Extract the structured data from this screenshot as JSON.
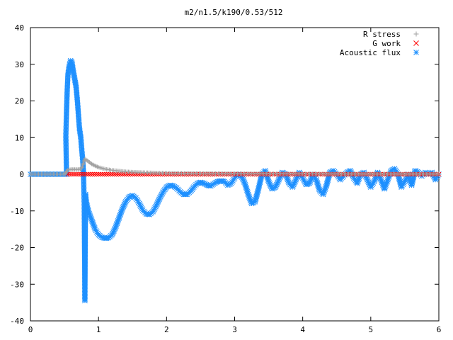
{
  "chart_data": {
    "type": "scatter",
    "title": "m2/n1.5/k190/0.53/512",
    "xlabel": "",
    "ylabel": "",
    "xlim": [
      0,
      6
    ],
    "ylim": [
      -40,
      40
    ],
    "x_ticks": [
      0,
      1,
      2,
      3,
      4,
      5,
      6
    ],
    "y_ticks": [
      -40,
      -30,
      -20,
      -10,
      0,
      10,
      20,
      30,
      40
    ],
    "grid": false,
    "legend_position": "top-right",
    "series": [
      {
        "name": "R stress",
        "marker": "plus",
        "color": "#a0a0a0",
        "points": [
          [
            0,
            0
          ],
          [
            0.5,
            0
          ],
          [
            0.55,
            1.2
          ],
          [
            0.6,
            1.3
          ],
          [
            0.65,
            1.3
          ],
          [
            0.7,
            1.3
          ],
          [
            0.75,
            1.5
          ],
          [
            0.8,
            4.2
          ],
          [
            0.85,
            3.5
          ],
          [
            0.9,
            2.8
          ],
          [
            0.95,
            2.3
          ],
          [
            1.0,
            1.9
          ],
          [
            1.1,
            1.4
          ],
          [
            1.2,
            1.1
          ],
          [
            1.3,
            0.9
          ],
          [
            1.4,
            0.7
          ],
          [
            1.5,
            0.6
          ],
          [
            1.7,
            0.45
          ],
          [
            2.0,
            0.3
          ],
          [
            2.5,
            0.2
          ],
          [
            3.0,
            0.15
          ],
          [
            4.0,
            0.1
          ],
          [
            5.0,
            0.05
          ],
          [
            6.0,
            0.05
          ]
        ]
      },
      {
        "name": "G work",
        "marker": "cross",
        "color": "#ff0000",
        "points": [
          [
            0.55,
            0
          ],
          [
            1.0,
            0
          ],
          [
            1.5,
            0
          ],
          [
            2.0,
            0
          ],
          [
            2.5,
            0
          ],
          [
            3.0,
            0
          ],
          [
            3.5,
            0
          ],
          [
            4.0,
            0
          ],
          [
            4.5,
            0
          ],
          [
            5.0,
            0
          ],
          [
            5.5,
            0
          ],
          [
            6.0,
            0
          ]
        ]
      },
      {
        "name": "Acoustic flux",
        "marker": "star",
        "color": "#1e90ff",
        "points": [
          [
            0,
            0
          ],
          [
            0.53,
            0
          ],
          [
            0.52,
            10.5
          ],
          [
            0.53,
            17
          ],
          [
            0.54,
            22.8
          ],
          [
            0.55,
            27
          ],
          [
            0.57,
            29.5
          ],
          [
            0.59,
            31
          ],
          [
            0.61,
            30.5
          ],
          [
            0.63,
            28
          ],
          [
            0.65,
            26
          ],
          [
            0.67,
            24
          ],
          [
            0.68,
            22
          ],
          [
            0.69,
            20
          ],
          [
            0.7,
            17.5
          ],
          [
            0.71,
            15
          ],
          [
            0.72,
            12.5
          ],
          [
            0.74,
            10
          ],
          [
            0.75,
            7.5
          ],
          [
            0.77,
            3.5
          ],
          [
            0.78,
            0
          ],
          [
            0.79,
            -8
          ],
          [
            0.8,
            -34.5
          ],
          [
            0.81,
            -5.5
          ],
          [
            0.82,
            -7.5
          ],
          [
            0.85,
            -10
          ],
          [
            0.9,
            -12.5
          ],
          [
            0.95,
            -15
          ],
          [
            1.0,
            -16.5
          ],
          [
            1.05,
            -17.2
          ],
          [
            1.1,
            -17.5
          ],
          [
            1.15,
            -17.3
          ],
          [
            1.2,
            -16.5
          ],
          [
            1.25,
            -14.5
          ],
          [
            1.3,
            -12
          ],
          [
            1.35,
            -9.5
          ],
          [
            1.4,
            -7.5
          ],
          [
            1.45,
            -6.2
          ],
          [
            1.5,
            -5.8
          ],
          [
            1.55,
            -6.5
          ],
          [
            1.6,
            -8
          ],
          [
            1.65,
            -9.8
          ],
          [
            1.7,
            -10.8
          ],
          [
            1.75,
            -11
          ],
          [
            1.8,
            -10.2
          ],
          [
            1.85,
            -8.5
          ],
          [
            1.9,
            -6.5
          ],
          [
            1.95,
            -4.8
          ],
          [
            2.0,
            -3.5
          ],
          [
            2.05,
            -3
          ],
          [
            2.1,
            -3.2
          ],
          [
            2.15,
            -3.8
          ],
          [
            2.2,
            -4.8
          ],
          [
            2.25,
            -5.5
          ],
          [
            2.3,
            -5.5
          ],
          [
            2.35,
            -4.7
          ],
          [
            2.4,
            -3.5
          ],
          [
            2.45,
            -2.5
          ],
          [
            2.5,
            -2.2
          ],
          [
            2.55,
            -2.5
          ],
          [
            2.6,
            -3
          ],
          [
            2.65,
            -3.2
          ],
          [
            2.7,
            -2.5
          ],
          [
            2.75,
            -2
          ],
          [
            2.8,
            -1.8
          ],
          [
            2.85,
            -2
          ],
          [
            2.9,
            -3
          ],
          [
            2.95,
            -2.5
          ],
          [
            3.0,
            -1
          ],
          [
            3.05,
            0
          ],
          [
            3.1,
            -0.5
          ],
          [
            3.15,
            -2.5
          ],
          [
            3.2,
            -5.5
          ],
          [
            3.25,
            -8
          ],
          [
            3.3,
            -7.5
          ],
          [
            3.35,
            -4
          ],
          [
            3.4,
            0
          ],
          [
            3.45,
            1
          ],
          [
            3.5,
            -2
          ],
          [
            3.55,
            -4
          ],
          [
            3.6,
            -3.5
          ],
          [
            3.65,
            -1.5
          ],
          [
            3.7,
            0.5
          ],
          [
            3.75,
            0
          ],
          [
            3.8,
            -2.5
          ],
          [
            3.85,
            -3.5
          ],
          [
            3.9,
            -1.5
          ],
          [
            3.95,
            0.5
          ],
          [
            4.0,
            -1
          ],
          [
            4.05,
            -2.8
          ],
          [
            4.1,
            -2.5
          ],
          [
            4.15,
            0
          ],
          [
            4.2,
            -1.5
          ],
          [
            4.25,
            -4.5
          ],
          [
            4.3,
            -5.5
          ],
          [
            4.35,
            -3
          ],
          [
            4.4,
            0.5
          ],
          [
            4.45,
            1
          ],
          [
            4.5,
            0
          ],
          [
            4.55,
            -1.5
          ],
          [
            4.6,
            -0.5
          ],
          [
            4.65,
            0.5
          ],
          [
            4.7,
            1
          ],
          [
            4.75,
            -1
          ],
          [
            4.8,
            -2.5
          ],
          [
            4.85,
            0
          ],
          [
            4.9,
            0.5
          ],
          [
            4.95,
            -1.5
          ],
          [
            5.0,
            -3.5
          ],
          [
            5.05,
            -2
          ],
          [
            5.1,
            0.5
          ],
          [
            5.15,
            -1.5
          ],
          [
            5.2,
            -4
          ],
          [
            5.25,
            -1.5
          ],
          [
            5.3,
            1
          ],
          [
            5.35,
            1.5
          ],
          [
            5.4,
            0
          ],
          [
            5.45,
            -3.5
          ],
          [
            5.5,
            -2
          ],
          [
            5.55,
            0
          ],
          [
            5.6,
            -3
          ],
          [
            5.65,
            1
          ],
          [
            5.7,
            0.5
          ],
          [
            5.75,
            -0.5
          ],
          [
            5.8,
            0.5
          ],
          [
            5.85,
            0
          ],
          [
            5.9,
            0.5
          ],
          [
            5.95,
            -1.5
          ],
          [
            6.0,
            0
          ]
        ]
      }
    ]
  }
}
